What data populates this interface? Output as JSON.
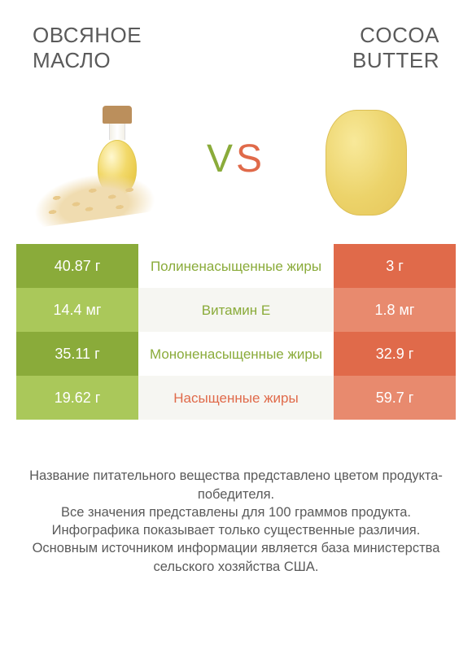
{
  "colors": {
    "green_dark": "#8aab3a",
    "green_light": "#aac85a",
    "orange_dark": "#e06a4a",
    "orange_light": "#e88a6e",
    "mid_bg": "#ffffff",
    "mid_alt_bg": "#f6f6f2",
    "label_green": "#8aab3a",
    "label_orange": "#e06a4a",
    "text": "#5a5a5a"
  },
  "left_product": {
    "title": "ОВСЯНОЕ МАСЛО"
  },
  "right_product": {
    "title": "COCOA BUTTER"
  },
  "vs": {
    "v": "V",
    "s": "S"
  },
  "rows": [
    {
      "left": "40.87 г",
      "label": "Полиненасыщенные жиры",
      "right": "3 г",
      "winner": "left"
    },
    {
      "left": "14.4 мг",
      "label": "Витамин E",
      "right": "1.8 мг",
      "winner": "left"
    },
    {
      "left": "35.11 г",
      "label": "Мононенасыщенные жиры",
      "right": "32.9 г",
      "winner": "left"
    },
    {
      "left": "19.62 г",
      "label": "Насыщенные жиры",
      "right": "59.7 г",
      "winner": "right"
    }
  ],
  "footer_lines": [
    "Название питательного вещества представлено цветом продукта-победителя.",
    "Все значения представлены для 100 граммов продукта.",
    "Инфографика показывает только существенные различия.",
    "Основным источником информации является база министерства сельского хозяйства США."
  ]
}
